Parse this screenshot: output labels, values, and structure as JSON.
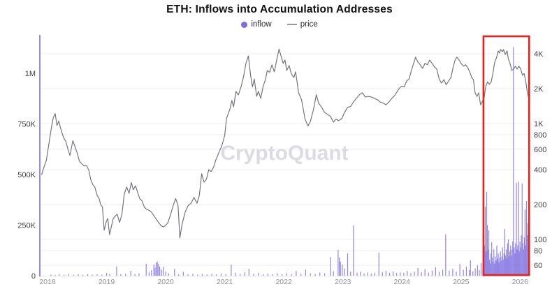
{
  "title": "ETH: Inflows into Accumulation Addresses",
  "legend": {
    "inflow_label": "inflow",
    "price_label": "price"
  },
  "watermark": "CryptoQuant",
  "colors": {
    "inflow": "#7c6ce0",
    "price": "#70707b",
    "legend_dash": "#9898a0",
    "highlight": "#e8211a",
    "watermark": "#dbdce3",
    "grid": "#ededf2",
    "axis_spine": "#7d6ce2",
    "baseline": "#e7e7ee",
    "tick_label": "#3f3f46",
    "year_label": "#8f8f98"
  },
  "chart_data": {
    "type": "bar",
    "subtype": "bar-and-line combo, log price axis",
    "title": "ETH: Inflows into Accumulation Addresses",
    "series": [
      {
        "name": "inflow",
        "type": "bar",
        "axis": "left",
        "color": "#7c6ce0"
      },
      {
        "name": "price",
        "type": "line",
        "axis": "right",
        "color": "#70707b"
      }
    ],
    "x_axis": {
      "ticks": [
        "2018",
        "2019",
        "2020",
        "2021",
        "2022",
        "2023",
        "2024",
        "2025",
        "2026"
      ],
      "range": [
        2017.87,
        2026.15
      ]
    },
    "left_axis": {
      "name": "inflow",
      "unit": "thousand ETH",
      "ticks": [
        {
          "label": "0",
          "k": 0
        },
        {
          "label": "250K",
          "k": 250
        },
        {
          "label": "500K",
          "k": 500
        },
        {
          "label": "750K",
          "k": 750
        },
        {
          "label": "1M",
          "k": 1000
        }
      ],
      "max_k": 1180
    },
    "right_axis": {
      "name": "price",
      "scale": "log",
      "ticks": [
        {
          "label": "60",
          "v": 60
        },
        {
          "label": "80",
          "v": 80
        },
        {
          "label": "100",
          "v": 100
        },
        {
          "label": "200",
          "v": 200
        },
        {
          "label": "400",
          "v": 400
        },
        {
          "label": "600",
          "v": 600
        },
        {
          "label": "800",
          "v": 800
        },
        {
          "label": "1K",
          "v": 1000
        },
        {
          "label": "2K",
          "v": 2000
        },
        {
          "label": "4K",
          "v": 4000
        }
      ]
    },
    "highlight_region": {
      "from": 2025.38,
      "to": 2026.153,
      "note": "red rectangle over mid-2025 to early-2026 inflow surge"
    },
    "price_series": [
      [
        2017.9,
        360
      ],
      [
        2017.94,
        420
      ],
      [
        2017.98,
        480
      ],
      [
        2018.03,
        700
      ],
      [
        2018.07,
        950
      ],
      [
        2018.1,
        1130
      ],
      [
        2018.13,
        1216
      ],
      [
        2018.16,
        960
      ],
      [
        2018.19,
        1050
      ],
      [
        2018.23,
        880
      ],
      [
        2018.27,
        760
      ],
      [
        2018.31,
        700
      ],
      [
        2018.35,
        590
      ],
      [
        2018.38,
        530
      ],
      [
        2018.43,
        713
      ],
      [
        2018.46,
        640
      ],
      [
        2018.5,
        560
      ],
      [
        2018.54,
        475
      ],
      [
        2018.58,
        450
      ],
      [
        2018.62,
        430
      ],
      [
        2018.66,
        435
      ],
      [
        2018.7,
        395
      ],
      [
        2018.73,
        330
      ],
      [
        2018.77,
        295
      ],
      [
        2018.8,
        285
      ],
      [
        2018.84,
        240
      ],
      [
        2018.87,
        228
      ],
      [
        2018.9,
        200
      ],
      [
        2018.93,
        190
      ],
      [
        2018.96,
        120
      ],
      [
        2018.99,
        140
      ],
      [
        2019.02,
        152
      ],
      [
        2019.05,
        110
      ],
      [
        2019.08,
        128
      ],
      [
        2019.11,
        150
      ],
      [
        2019.14,
        158
      ],
      [
        2019.18,
        165
      ],
      [
        2019.22,
        140
      ],
      [
        2019.26,
        165
      ],
      [
        2019.3,
        248
      ],
      [
        2019.34,
        283
      ],
      [
        2019.38,
        250
      ],
      [
        2019.42,
        310
      ],
      [
        2019.45,
        268
      ],
      [
        2019.49,
        290
      ],
      [
        2019.52,
        260
      ],
      [
        2019.56,
        225
      ],
      [
        2019.6,
        215
      ],
      [
        2019.64,
        190
      ],
      [
        2019.68,
        182
      ],
      [
        2019.72,
        178
      ],
      [
        2019.76,
        172
      ],
      [
        2019.8,
        160
      ],
      [
        2019.84,
        150
      ],
      [
        2019.88,
        140
      ],
      [
        2019.92,
        132
      ],
      [
        2019.96,
        128
      ],
      [
        2020.0,
        132
      ],
      [
        2020.04,
        140
      ],
      [
        2020.08,
        162
      ],
      [
        2020.13,
        198
      ],
      [
        2020.17,
        225
      ],
      [
        2020.21,
        196
      ],
      [
        2020.24,
        103
      ],
      [
        2020.28,
        136
      ],
      [
        2020.33,
        172
      ],
      [
        2020.38,
        196
      ],
      [
        2020.43,
        205
      ],
      [
        2020.48,
        230
      ],
      [
        2020.53,
        205
      ],
      [
        2020.57,
        240
      ],
      [
        2020.61,
        369
      ],
      [
        2020.65,
        312
      ],
      [
        2020.69,
        330
      ],
      [
        2020.73,
        400
      ],
      [
        2020.77,
        384
      ],
      [
        2020.81,
        420
      ],
      [
        2020.85,
        485
      ],
      [
        2020.9,
        560
      ],
      [
        2020.95,
        641
      ],
      [
        2021.0,
        790
      ],
      [
        2021.03,
        1100
      ],
      [
        2021.06,
        1216
      ],
      [
        2021.09,
        1340
      ],
      [
        2021.12,
        1580
      ],
      [
        2021.15,
        1394
      ],
      [
        2021.19,
        1889
      ],
      [
        2021.23,
        1760
      ],
      [
        2021.28,
        2103
      ],
      [
        2021.32,
        2560
      ],
      [
        2021.36,
        3300
      ],
      [
        2021.4,
        3830
      ],
      [
        2021.44,
        2560
      ],
      [
        2021.47,
        2070
      ],
      [
        2021.5,
        2420
      ],
      [
        2021.54,
        1713
      ],
      [
        2021.57,
        1889
      ],
      [
        2021.61,
        1650
      ],
      [
        2021.65,
        2100
      ],
      [
        2021.69,
        2390
      ],
      [
        2021.72,
        2870
      ],
      [
        2021.76,
        2760
      ],
      [
        2021.8,
        3210
      ],
      [
        2021.84,
        2790
      ],
      [
        2021.88,
        3530
      ],
      [
        2021.92,
        4380
      ],
      [
        2021.95,
        3880
      ],
      [
        2021.99,
        3300
      ],
      [
        2022.02,
        3530
      ],
      [
        2022.05,
        2870
      ],
      [
        2022.09,
        3160
      ],
      [
        2022.13,
        2670
      ],
      [
        2022.17,
        2490
      ],
      [
        2022.2,
        2790
      ],
      [
        2022.25,
        1840
      ],
      [
        2022.3,
        1610
      ],
      [
        2022.36,
        1090
      ],
      [
        2022.41,
        953
      ],
      [
        2022.45,
        1045
      ],
      [
        2022.5,
        1300
      ],
      [
        2022.55,
        1770
      ],
      [
        2022.59,
        1500
      ],
      [
        2022.64,
        1380
      ],
      [
        2022.69,
        1250
      ],
      [
        2022.74,
        1200
      ],
      [
        2022.79,
        1150
      ],
      [
        2022.84,
        1025
      ],
      [
        2022.88,
        1090
      ],
      [
        2022.93,
        1060
      ],
      [
        2022.98,
        1100
      ],
      [
        2023.03,
        1250
      ],
      [
        2023.08,
        1380
      ],
      [
        2023.13,
        1400
      ],
      [
        2023.18,
        1535
      ],
      [
        2023.23,
        1650
      ],
      [
        2023.28,
        1770
      ],
      [
        2023.33,
        1840
      ],
      [
        2023.38,
        1693
      ],
      [
        2023.43,
        1713
      ],
      [
        2023.48,
        1693
      ],
      [
        2023.53,
        1650
      ],
      [
        2023.58,
        1610
      ],
      [
        2023.63,
        1535
      ],
      [
        2023.68,
        1500
      ],
      [
        2023.73,
        1450
      ],
      [
        2023.78,
        1535
      ],
      [
        2023.83,
        1650
      ],
      [
        2023.88,
        1750
      ],
      [
        2023.92,
        1889
      ],
      [
        2023.96,
        2030
      ],
      [
        2024.0,
        2103
      ],
      [
        2024.04,
        2070
      ],
      [
        2024.08,
        2330
      ],
      [
        2024.12,
        2420
      ],
      [
        2024.16,
        2870
      ],
      [
        2024.19,
        3210
      ],
      [
        2024.23,
        3730
      ],
      [
        2024.27,
        3390
      ],
      [
        2024.31,
        3210
      ],
      [
        2024.35,
        2990
      ],
      [
        2024.39,
        3300
      ],
      [
        2024.43,
        3210
      ],
      [
        2024.47,
        3520
      ],
      [
        2024.51,
        3300
      ],
      [
        2024.55,
        3080
      ],
      [
        2024.59,
        2950
      ],
      [
        2024.63,
        2420
      ],
      [
        2024.67,
        2230
      ],
      [
        2024.71,
        2390
      ],
      [
        2024.75,
        2160
      ],
      [
        2024.79,
        2330
      ],
      [
        2024.83,
        2490
      ],
      [
        2024.87,
        3120
      ],
      [
        2024.9,
        3520
      ],
      [
        2024.93,
        3730
      ],
      [
        2024.97,
        3520
      ],
      [
        2025.0,
        3300
      ],
      [
        2025.04,
        3120
      ],
      [
        2025.08,
        3210
      ],
      [
        2025.12,
        2990
      ],
      [
        2025.15,
        2760
      ],
      [
        2025.18,
        2490
      ],
      [
        2025.21,
        2390
      ],
      [
        2025.24,
        1820
      ],
      [
        2025.27,
        1713
      ],
      [
        2025.3,
        1840
      ],
      [
        2025.33,
        1450
      ],
      [
        2025.36,
        1540
      ],
      [
        2025.39,
        1650
      ],
      [
        2025.42,
        2100
      ],
      [
        2025.45,
        2280
      ],
      [
        2025.48,
        2180
      ],
      [
        2025.51,
        2280
      ],
      [
        2025.54,
        2700
      ],
      [
        2025.57,
        3390
      ],
      [
        2025.6,
        3680
      ],
      [
        2025.63,
        4230
      ],
      [
        2025.65,
        4050
      ],
      [
        2025.67,
        4350
      ],
      [
        2025.7,
        4150
      ],
      [
        2025.72,
        4350
      ],
      [
        2025.75,
        3940
      ],
      [
        2025.78,
        4230
      ],
      [
        2025.8,
        3630
      ],
      [
        2025.83,
        3300
      ],
      [
        2025.86,
        2870
      ],
      [
        2025.89,
        2950
      ],
      [
        2025.92,
        3120
      ],
      [
        2025.95,
        2950
      ],
      [
        2025.98,
        3120
      ],
      [
        2026.01,
        2950
      ],
      [
        2026.04,
        2610
      ],
      [
        2026.07,
        2700
      ],
      [
        2026.1,
        2230
      ],
      [
        2026.12,
        1890
      ],
      [
        2026.14,
        1690
      ]
    ],
    "inflow_series_k": [
      [
        2018.06,
        6
      ],
      [
        2018.13,
        4
      ],
      [
        2018.2,
        8
      ],
      [
        2018.28,
        5
      ],
      [
        2018.36,
        9
      ],
      [
        2018.44,
        5
      ],
      [
        2018.52,
        7
      ],
      [
        2018.6,
        4
      ],
      [
        2018.68,
        8
      ],
      [
        2018.76,
        5
      ],
      [
        2018.84,
        7
      ],
      [
        2018.92,
        4
      ],
      [
        2019.0,
        14
      ],
      [
        2019.05,
        8
      ],
      [
        2019.17,
        45
      ],
      [
        2019.24,
        7
      ],
      [
        2019.32,
        10
      ],
      [
        2019.41,
        24
      ],
      [
        2019.48,
        9
      ],
      [
        2019.55,
        12
      ],
      [
        2019.67,
        59
      ],
      [
        2019.72,
        18
      ],
      [
        2019.76,
        28
      ],
      [
        2019.8,
        55
      ],
      [
        2019.82,
        40
      ],
      [
        2019.84,
        65
      ],
      [
        2019.86,
        70
      ],
      [
        2019.88,
        58
      ],
      [
        2019.9,
        45
      ],
      [
        2019.93,
        30
      ],
      [
        2019.96,
        45
      ],
      [
        2020.0,
        20
      ],
      [
        2020.05,
        12
      ],
      [
        2020.15,
        34
      ],
      [
        2020.22,
        8
      ],
      [
        2020.3,
        20
      ],
      [
        2020.38,
        7
      ],
      [
        2020.46,
        10
      ],
      [
        2020.54,
        6
      ],
      [
        2020.62,
        9
      ],
      [
        2020.7,
        6
      ],
      [
        2020.78,
        10
      ],
      [
        2020.86,
        7
      ],
      [
        2020.94,
        11
      ],
      [
        2021.02,
        9
      ],
      [
        2021.11,
        55
      ],
      [
        2021.18,
        15
      ],
      [
        2021.26,
        10
      ],
      [
        2021.34,
        18
      ],
      [
        2021.41,
        34
      ],
      [
        2021.49,
        10
      ],
      [
        2021.57,
        13
      ],
      [
        2021.65,
        8
      ],
      [
        2021.73,
        11
      ],
      [
        2021.81,
        8
      ],
      [
        2021.89,
        12
      ],
      [
        2021.97,
        9
      ],
      [
        2022.05,
        13
      ],
      [
        2022.13,
        8
      ],
      [
        2022.21,
        25
      ],
      [
        2022.29,
        10
      ],
      [
        2022.37,
        30
      ],
      [
        2022.45,
        12
      ],
      [
        2022.53,
        9
      ],
      [
        2022.61,
        15
      ],
      [
        2022.69,
        12
      ],
      [
        2022.79,
        93
      ],
      [
        2022.84,
        22
      ],
      [
        2022.92,
        128
      ],
      [
        2022.94,
        90
      ],
      [
        2022.96,
        70
      ],
      [
        2022.99,
        55
      ],
      [
        2023.03,
        35
      ],
      [
        2023.08,
        110
      ],
      [
        2023.13,
        20
      ],
      [
        2023.18,
        248
      ],
      [
        2023.24,
        15
      ],
      [
        2023.3,
        20
      ],
      [
        2023.36,
        12
      ],
      [
        2023.42,
        16
      ],
      [
        2023.48,
        11
      ],
      [
        2023.54,
        14
      ],
      [
        2023.61,
        114
      ],
      [
        2023.67,
        18
      ],
      [
        2023.73,
        25
      ],
      [
        2023.79,
        14
      ],
      [
        2023.85,
        22
      ],
      [
        2023.91,
        13
      ],
      [
        2023.97,
        17
      ],
      [
        2024.03,
        14
      ],
      [
        2024.09,
        24
      ],
      [
        2024.15,
        13
      ],
      [
        2024.21,
        20
      ],
      [
        2024.27,
        38
      ],
      [
        2024.33,
        18
      ],
      [
        2024.39,
        32
      ],
      [
        2024.45,
        15
      ],
      [
        2024.51,
        26
      ],
      [
        2024.57,
        42
      ],
      [
        2024.63,
        20
      ],
      [
        2024.69,
        30
      ],
      [
        2024.74,
        205
      ],
      [
        2024.8,
        25
      ],
      [
        2024.86,
        34
      ],
      [
        2024.92,
        20
      ],
      [
        2024.98,
        58
      ],
      [
        2025.04,
        30
      ],
      [
        2025.09,
        45
      ],
      [
        2025.14,
        28
      ],
      [
        2025.16,
        76
      ],
      [
        2025.2,
        22
      ],
      [
        2025.24,
        36
      ],
      [
        2025.28,
        52
      ],
      [
        2025.31,
        28
      ],
      [
        2025.34,
        62
      ],
      [
        2025.37,
        38
      ]
    ],
    "inflow_burst_k": {
      "start": 2025.385,
      "step": 0.01226,
      "values": [
        90,
        150,
        340,
        120,
        414,
        250,
        130,
        224,
        80,
        60,
        110,
        166,
        90,
        70,
        130,
        60,
        95,
        75,
        150,
        85,
        110,
        65,
        90,
        120,
        75,
        95,
        140,
        80,
        110,
        231,
        100,
        130,
        85,
        160,
        179,
        95,
        120,
        150,
        100,
        130,
        170,
        1130,
        140,
        110,
        160,
        459,
        130,
        150,
        466,
        120,
        170,
        140,
        200,
        455,
        160,
        130,
        190,
        328,
        150,
        369,
        200,
        260
      ]
    }
  }
}
